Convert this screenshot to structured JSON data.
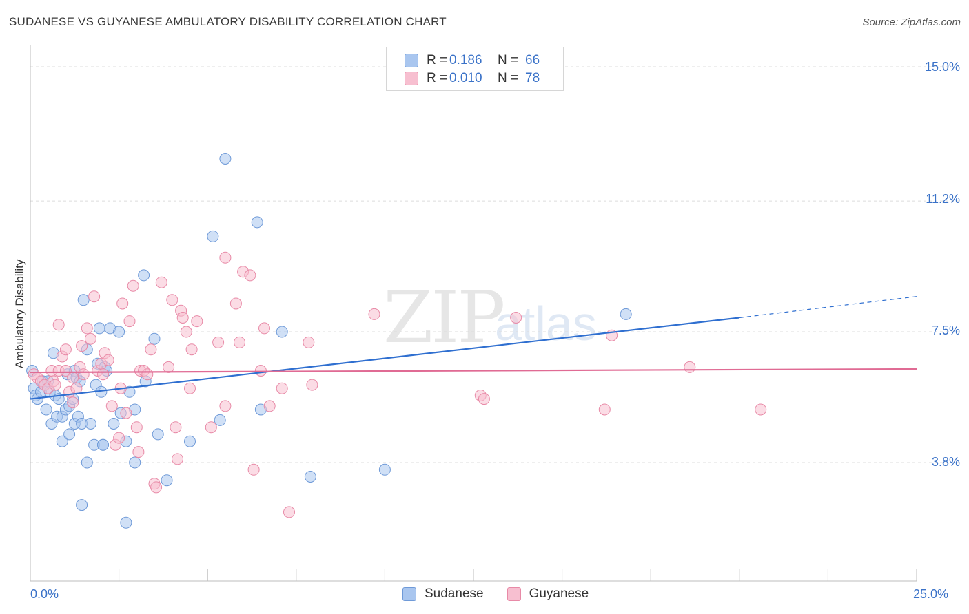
{
  "title": "SUDANESE VS GUYANESE AMBULATORY DISABILITY CORRELATION CHART",
  "source": "Source: ZipAtlas.com",
  "watermark": {
    "zip": "ZIP",
    "atlas": "atlas"
  },
  "legend": {
    "rows": [
      {
        "r_label": "R =",
        "r_value": "0.186",
        "n_label": "N =",
        "n_value": "66",
        "color": "#a9c6ef",
        "stroke": "#6f9ad8"
      },
      {
        "r_label": "R =",
        "r_value": "0.010",
        "n_label": "N =",
        "n_value": "78",
        "color": "#f7bfd0",
        "stroke": "#e88aa7"
      }
    ]
  },
  "bottom_legend": [
    {
      "label": "Sudanese",
      "color": "#a9c6ef",
      "stroke": "#6f9ad8"
    },
    {
      "label": "Guyanese",
      "color": "#f7bfd0",
      "stroke": "#e88aa7"
    }
  ],
  "chart_data": {
    "type": "scatter",
    "title": "SUDANESE VS GUYANESE AMBULATORY DISABILITY CORRELATION CHART",
    "xlabel": "",
    "ylabel": "Ambulatory Disability",
    "xlim": [
      0,
      25
    ],
    "ylim": [
      0,
      16
    ],
    "x_tick_labels": [
      "0.0%",
      "25.0%"
    ],
    "y_ticks": [
      3.8,
      7.5,
      11.2,
      15.0
    ],
    "y_tick_labels": [
      "3.8%",
      "7.5%",
      "11.2%",
      "15.0%"
    ],
    "grid": true,
    "legend_position": "top-center",
    "series": [
      {
        "name": "Sudanese",
        "color": "#6f9ad8",
        "fill": "#a9c6ef",
        "trend": {
          "x": [
            0.0,
            20.0
          ],
          "y": [
            5.6,
            7.9
          ],
          "extend_to": 25.0,
          "extend_y": 8.5,
          "color": "#2f6fd0"
        },
        "points": [
          [
            0.05,
            6.4
          ],
          [
            0.1,
            5.9
          ],
          [
            0.15,
            5.7
          ],
          [
            0.2,
            5.6
          ],
          [
            0.3,
            5.8
          ],
          [
            0.35,
            6.1
          ],
          [
            0.4,
            6.0
          ],
          [
            0.45,
            5.3
          ],
          [
            0.5,
            6.1
          ],
          [
            0.55,
            5.8
          ],
          [
            0.6,
            4.9
          ],
          [
            0.65,
            6.9
          ],
          [
            0.7,
            5.7
          ],
          [
            0.75,
            5.1
          ],
          [
            0.8,
            5.6
          ],
          [
            0.9,
            5.1
          ],
          [
            0.9,
            4.4
          ],
          [
            1.0,
            5.3
          ],
          [
            1.05,
            6.3
          ],
          [
            1.1,
            5.4
          ],
          [
            1.1,
            4.6
          ],
          [
            1.2,
            5.6
          ],
          [
            1.25,
            6.4
          ],
          [
            1.25,
            4.9
          ],
          [
            1.3,
            6.2
          ],
          [
            1.35,
            5.1
          ],
          [
            1.4,
            6.1
          ],
          [
            1.45,
            4.9
          ],
          [
            1.5,
            8.4
          ],
          [
            1.6,
            7.0
          ],
          [
            1.6,
            3.8
          ],
          [
            1.7,
            4.9
          ],
          [
            1.8,
            4.3
          ],
          [
            1.85,
            6.0
          ],
          [
            1.9,
            6.6
          ],
          [
            1.95,
            7.6
          ],
          [
            2.0,
            5.8
          ],
          [
            2.05,
            4.3
          ],
          [
            2.1,
            6.5
          ],
          [
            2.15,
            6.4
          ],
          [
            2.25,
            7.6
          ],
          [
            2.35,
            4.9
          ],
          [
            2.5,
            7.5
          ],
          [
            2.55,
            5.2
          ],
          [
            2.7,
            4.4
          ],
          [
            2.8,
            5.8
          ],
          [
            2.95,
            5.3
          ],
          [
            2.95,
            3.8
          ],
          [
            3.2,
            9.1
          ],
          [
            3.25,
            6.1
          ],
          [
            3.5,
            7.3
          ],
          [
            3.6,
            4.6
          ],
          [
            3.85,
            3.3
          ],
          [
            4.5,
            4.4
          ],
          [
            5.15,
            10.2
          ],
          [
            5.35,
            5.0
          ],
          [
            5.5,
            12.4
          ],
          [
            6.4,
            10.6
          ],
          [
            6.5,
            5.3
          ],
          [
            7.1,
            7.5
          ],
          [
            7.9,
            3.4
          ],
          [
            10.0,
            3.6
          ],
          [
            16.8,
            8.0
          ],
          [
            1.45,
            2.6
          ],
          [
            2.7,
            2.1
          ],
          [
            2.05,
            4.3
          ]
        ]
      },
      {
        "name": "Guyanese",
        "color": "#e88aa7",
        "fill": "#f7bfd0",
        "trend": {
          "x": [
            0.0,
            25.0
          ],
          "y": [
            6.35,
            6.45
          ],
          "color": "#e06b94"
        },
        "points": [
          [
            0.1,
            6.3
          ],
          [
            0.2,
            6.2
          ],
          [
            0.3,
            6.1
          ],
          [
            0.4,
            6.0
          ],
          [
            0.5,
            5.9
          ],
          [
            0.6,
            6.4
          ],
          [
            0.65,
            6.1
          ],
          [
            0.7,
            6.0
          ],
          [
            0.8,
            6.4
          ],
          [
            0.8,
            7.7
          ],
          [
            0.9,
            6.8
          ],
          [
            1.0,
            6.4
          ],
          [
            1.0,
            7.0
          ],
          [
            1.1,
            5.8
          ],
          [
            1.2,
            6.2
          ],
          [
            1.2,
            5.5
          ],
          [
            1.3,
            5.9
          ],
          [
            1.4,
            6.5
          ],
          [
            1.45,
            7.1
          ],
          [
            1.5,
            6.3
          ],
          [
            1.6,
            7.6
          ],
          [
            1.7,
            7.3
          ],
          [
            1.8,
            8.5
          ],
          [
            1.9,
            6.4
          ],
          [
            2.0,
            6.6
          ],
          [
            2.05,
            6.3
          ],
          [
            2.1,
            6.9
          ],
          [
            2.2,
            6.7
          ],
          [
            2.3,
            5.4
          ],
          [
            2.4,
            4.3
          ],
          [
            2.5,
            4.5
          ],
          [
            2.55,
            5.9
          ],
          [
            2.6,
            8.3
          ],
          [
            2.7,
            5.2
          ],
          [
            2.8,
            7.8
          ],
          [
            2.9,
            8.8
          ],
          [
            3.0,
            4.8
          ],
          [
            3.05,
            4.1
          ],
          [
            3.1,
            6.4
          ],
          [
            3.2,
            6.4
          ],
          [
            3.3,
            6.3
          ],
          [
            3.4,
            7.0
          ],
          [
            3.5,
            3.2
          ],
          [
            3.55,
            3.1
          ],
          [
            3.7,
            8.9
          ],
          [
            3.9,
            6.5
          ],
          [
            4.0,
            8.4
          ],
          [
            4.1,
            4.8
          ],
          [
            4.15,
            3.9
          ],
          [
            4.25,
            8.1
          ],
          [
            4.3,
            7.9
          ],
          [
            4.4,
            7.5
          ],
          [
            4.5,
            5.9
          ],
          [
            4.55,
            7.0
          ],
          [
            4.7,
            7.8
          ],
          [
            5.1,
            4.8
          ],
          [
            5.3,
            7.2
          ],
          [
            5.5,
            9.6
          ],
          [
            5.5,
            5.4
          ],
          [
            5.8,
            8.3
          ],
          [
            5.9,
            7.2
          ],
          [
            6.0,
            9.2
          ],
          [
            6.2,
            9.1
          ],
          [
            6.3,
            3.6
          ],
          [
            6.5,
            6.4
          ],
          [
            6.6,
            7.6
          ],
          [
            6.75,
            5.4
          ],
          [
            7.1,
            5.9
          ],
          [
            7.3,
            2.4
          ],
          [
            7.85,
            7.2
          ],
          [
            7.95,
            6.0
          ],
          [
            9.7,
            8.0
          ],
          [
            12.7,
            5.7
          ],
          [
            12.8,
            5.6
          ],
          [
            13.7,
            7.9
          ],
          [
            16.4,
            7.4
          ],
          [
            16.2,
            5.3
          ],
          [
            18.6,
            6.5
          ],
          [
            20.6,
            5.3
          ]
        ]
      }
    ]
  }
}
